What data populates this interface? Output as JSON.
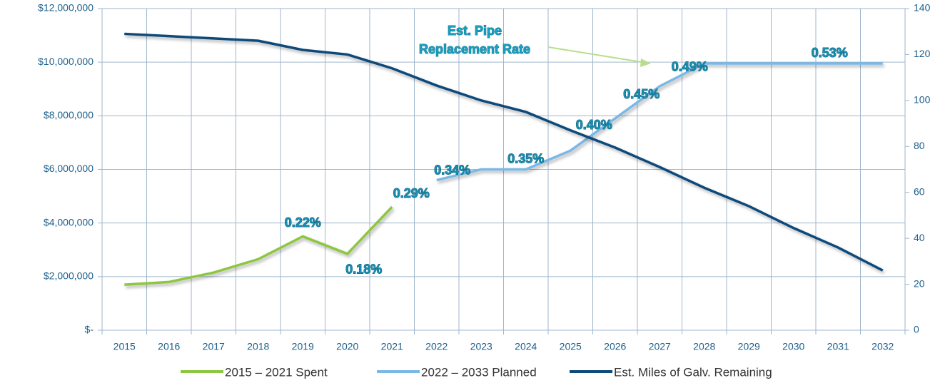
{
  "chart_data": {
    "type": "line",
    "categories": [
      "2015",
      "2016",
      "2017",
      "2018",
      "2019",
      "2020",
      "2021",
      "2022",
      "2023",
      "2024",
      "2025",
      "2026",
      "2027",
      "2028",
      "2029",
      "2030",
      "2031",
      "2032"
    ],
    "series": [
      {
        "name": "2015 – 2021 Spent",
        "color": "#8dc63f",
        "values": [
          1700000,
          1800000,
          2150000,
          2650000,
          3500000,
          2850000,
          4600000,
          null,
          null,
          null,
          null,
          null,
          null,
          null,
          null,
          null,
          null,
          null
        ]
      },
      {
        "name": "2022 – 2033 Planned",
        "color": "#7ab8e6",
        "values": [
          null,
          null,
          null,
          null,
          null,
          null,
          null,
          5600000,
          6000000,
          6000000,
          6700000,
          7900000,
          9100000,
          9950000,
          9950000,
          9950000,
          9950000,
          9950000
        ]
      },
      {
        "name": "Est. Miles of Galv. Remaining",
        "color": "#0e4a7a",
        "axis": "y2",
        "values": [
          129,
          128,
          127,
          126,
          122,
          120,
          114,
          106.5,
          100,
          95,
          87,
          79.5,
          71,
          62,
          54,
          44.5,
          36,
          26
        ]
      }
    ],
    "rate_labels": [
      null,
      null,
      null,
      null,
      "0.22%",
      "0.18%",
      "0.29%",
      "0.34%",
      null,
      "0.35%",
      "0.40%",
      "0.45%",
      "0.49%",
      null,
      null,
      null,
      "0.53%",
      null
    ],
    "annotation": [
      "Est. Pipe",
      "Replacement Rate"
    ],
    "ylim": [
      0,
      12000000
    ],
    "yticks": [
      {
        "value": 0,
        "label": "$-"
      },
      {
        "value": 2000000,
        "label": "$2,000,000"
      },
      {
        "value": 4000000,
        "label": "$4,000,000"
      },
      {
        "value": 6000000,
        "label": "$6,000,000"
      },
      {
        "value": 8000000,
        "label": "$8,000,000"
      },
      {
        "value": 10000000,
        "label": "$10,000,000"
      },
      {
        "value": 12000000,
        "label": "$12,000,000"
      }
    ],
    "y2lim": [
      0,
      140
    ],
    "y2ticks": [
      0,
      20,
      40,
      60,
      80,
      100,
      120,
      140
    ],
    "grid": true,
    "legend": "bottom"
  }
}
